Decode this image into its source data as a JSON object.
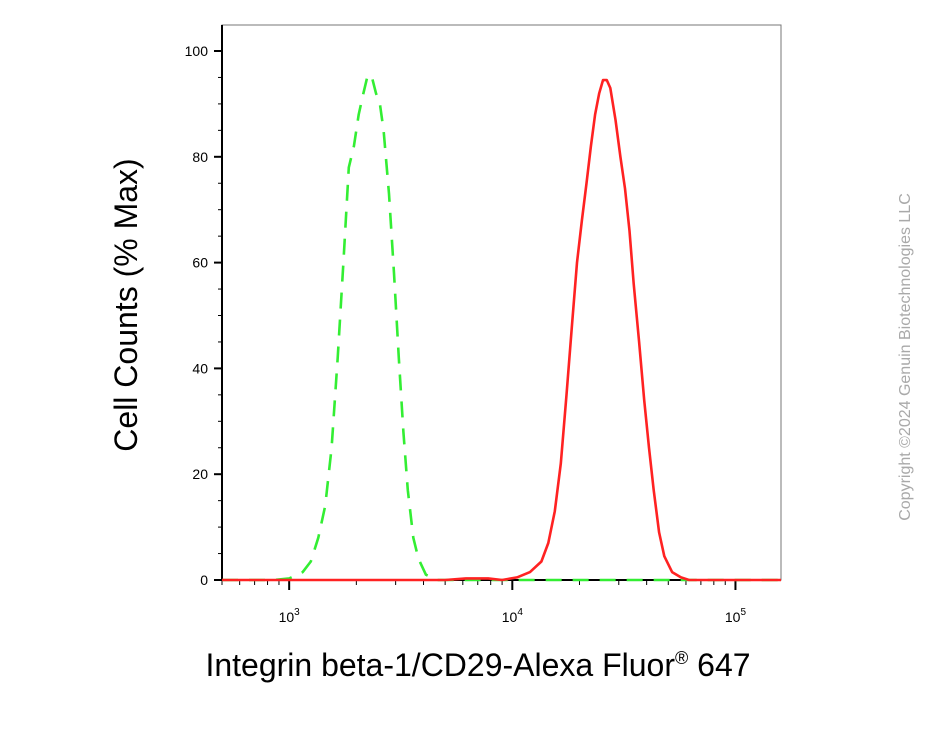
{
  "chart_data": {
    "type": "line",
    "title": "",
    "xlabel": "Integrin beta-1/CD29-Alexa Fluor",
    "xlabel_superscript": "®",
    "xlabel_suffix": " 647",
    "ylabel": "Cell Counts (% Max)",
    "xscale": "log",
    "xlim": [
      500,
      160000
    ],
    "ylim": [
      0,
      100
    ],
    "xticks": [
      {
        "value": 1000,
        "base": "10",
        "exp": "3"
      },
      {
        "value": 10000,
        "base": "10",
        "exp": "4"
      },
      {
        "value": 100000,
        "base": "10",
        "exp": "5"
      }
    ],
    "yticks": [
      {
        "value": 0,
        "label": "0"
      },
      {
        "value": 20,
        "label": "20"
      },
      {
        "value": 40,
        "label": "40"
      },
      {
        "value": 60,
        "label": "60"
      },
      {
        "value": 80,
        "label": "80"
      },
      {
        "value": 100,
        "label": "100"
      }
    ],
    "grid": false,
    "legend": "none",
    "series": [
      {
        "color": "#33ee33",
        "style": "dashed",
        "points": [
          [
            500,
            0
          ],
          [
            700,
            0
          ],
          [
            850,
            0
          ],
          [
            1000,
            0.3
          ],
          [
            1150,
            1.5
          ],
          [
            1250,
            3.5
          ],
          [
            1350,
            8
          ],
          [
            1450,
            14
          ],
          [
            1550,
            25
          ],
          [
            1650,
            42
          ],
          [
            1750,
            60
          ],
          [
            1850,
            78
          ],
          [
            1950,
            82
          ],
          [
            2050,
            88
          ],
          [
            2150,
            92
          ],
          [
            2250,
            95.5
          ],
          [
            2350,
            95
          ],
          [
            2450,
            92
          ],
          [
            2550,
            90
          ],
          [
            2650,
            85
          ],
          [
            2800,
            73
          ],
          [
            2950,
            58
          ],
          [
            3100,
            42
          ],
          [
            3250,
            28
          ],
          [
            3400,
            17
          ],
          [
            3600,
            8
          ],
          [
            3800,
            4
          ],
          [
            4100,
            1
          ],
          [
            4600,
            0
          ],
          [
            6000,
            0
          ],
          [
            20000,
            0
          ],
          [
            80000,
            0
          ],
          [
            160000,
            0
          ]
        ]
      },
      {
        "color": "#ff2222",
        "style": "solid",
        "points": [
          [
            500,
            0
          ],
          [
            5000,
            0
          ],
          [
            6200,
            0.3
          ],
          [
            7800,
            0.3
          ],
          [
            9000,
            0
          ],
          [
            10500,
            0.5
          ],
          [
            12000,
            1.5
          ],
          [
            13500,
            3.5
          ],
          [
            14500,
            7
          ],
          [
            15500,
            13
          ],
          [
            16500,
            22
          ],
          [
            17500,
            35
          ],
          [
            18500,
            48
          ],
          [
            19500,
            60
          ],
          [
            20500,
            68
          ],
          [
            21500,
            75
          ],
          [
            22500,
            82
          ],
          [
            23500,
            88
          ],
          [
            24500,
            92
          ],
          [
            25500,
            94.5
          ],
          [
            26500,
            94.5
          ],
          [
            27500,
            93
          ],
          [
            29000,
            87
          ],
          [
            30500,
            80
          ],
          [
            32000,
            74
          ],
          [
            33500,
            66
          ],
          [
            35000,
            56
          ],
          [
            37000,
            45
          ],
          [
            39000,
            34
          ],
          [
            41000,
            25
          ],
          [
            43000,
            17
          ],
          [
            45500,
            9
          ],
          [
            48000,
            4.5
          ],
          [
            52000,
            1.5
          ],
          [
            57000,
            0.5
          ],
          [
            62000,
            0
          ],
          [
            160000,
            0
          ]
        ]
      }
    ]
  },
  "watermark": "Copyright ©2024 Genuin Biotechnologies LLC"
}
